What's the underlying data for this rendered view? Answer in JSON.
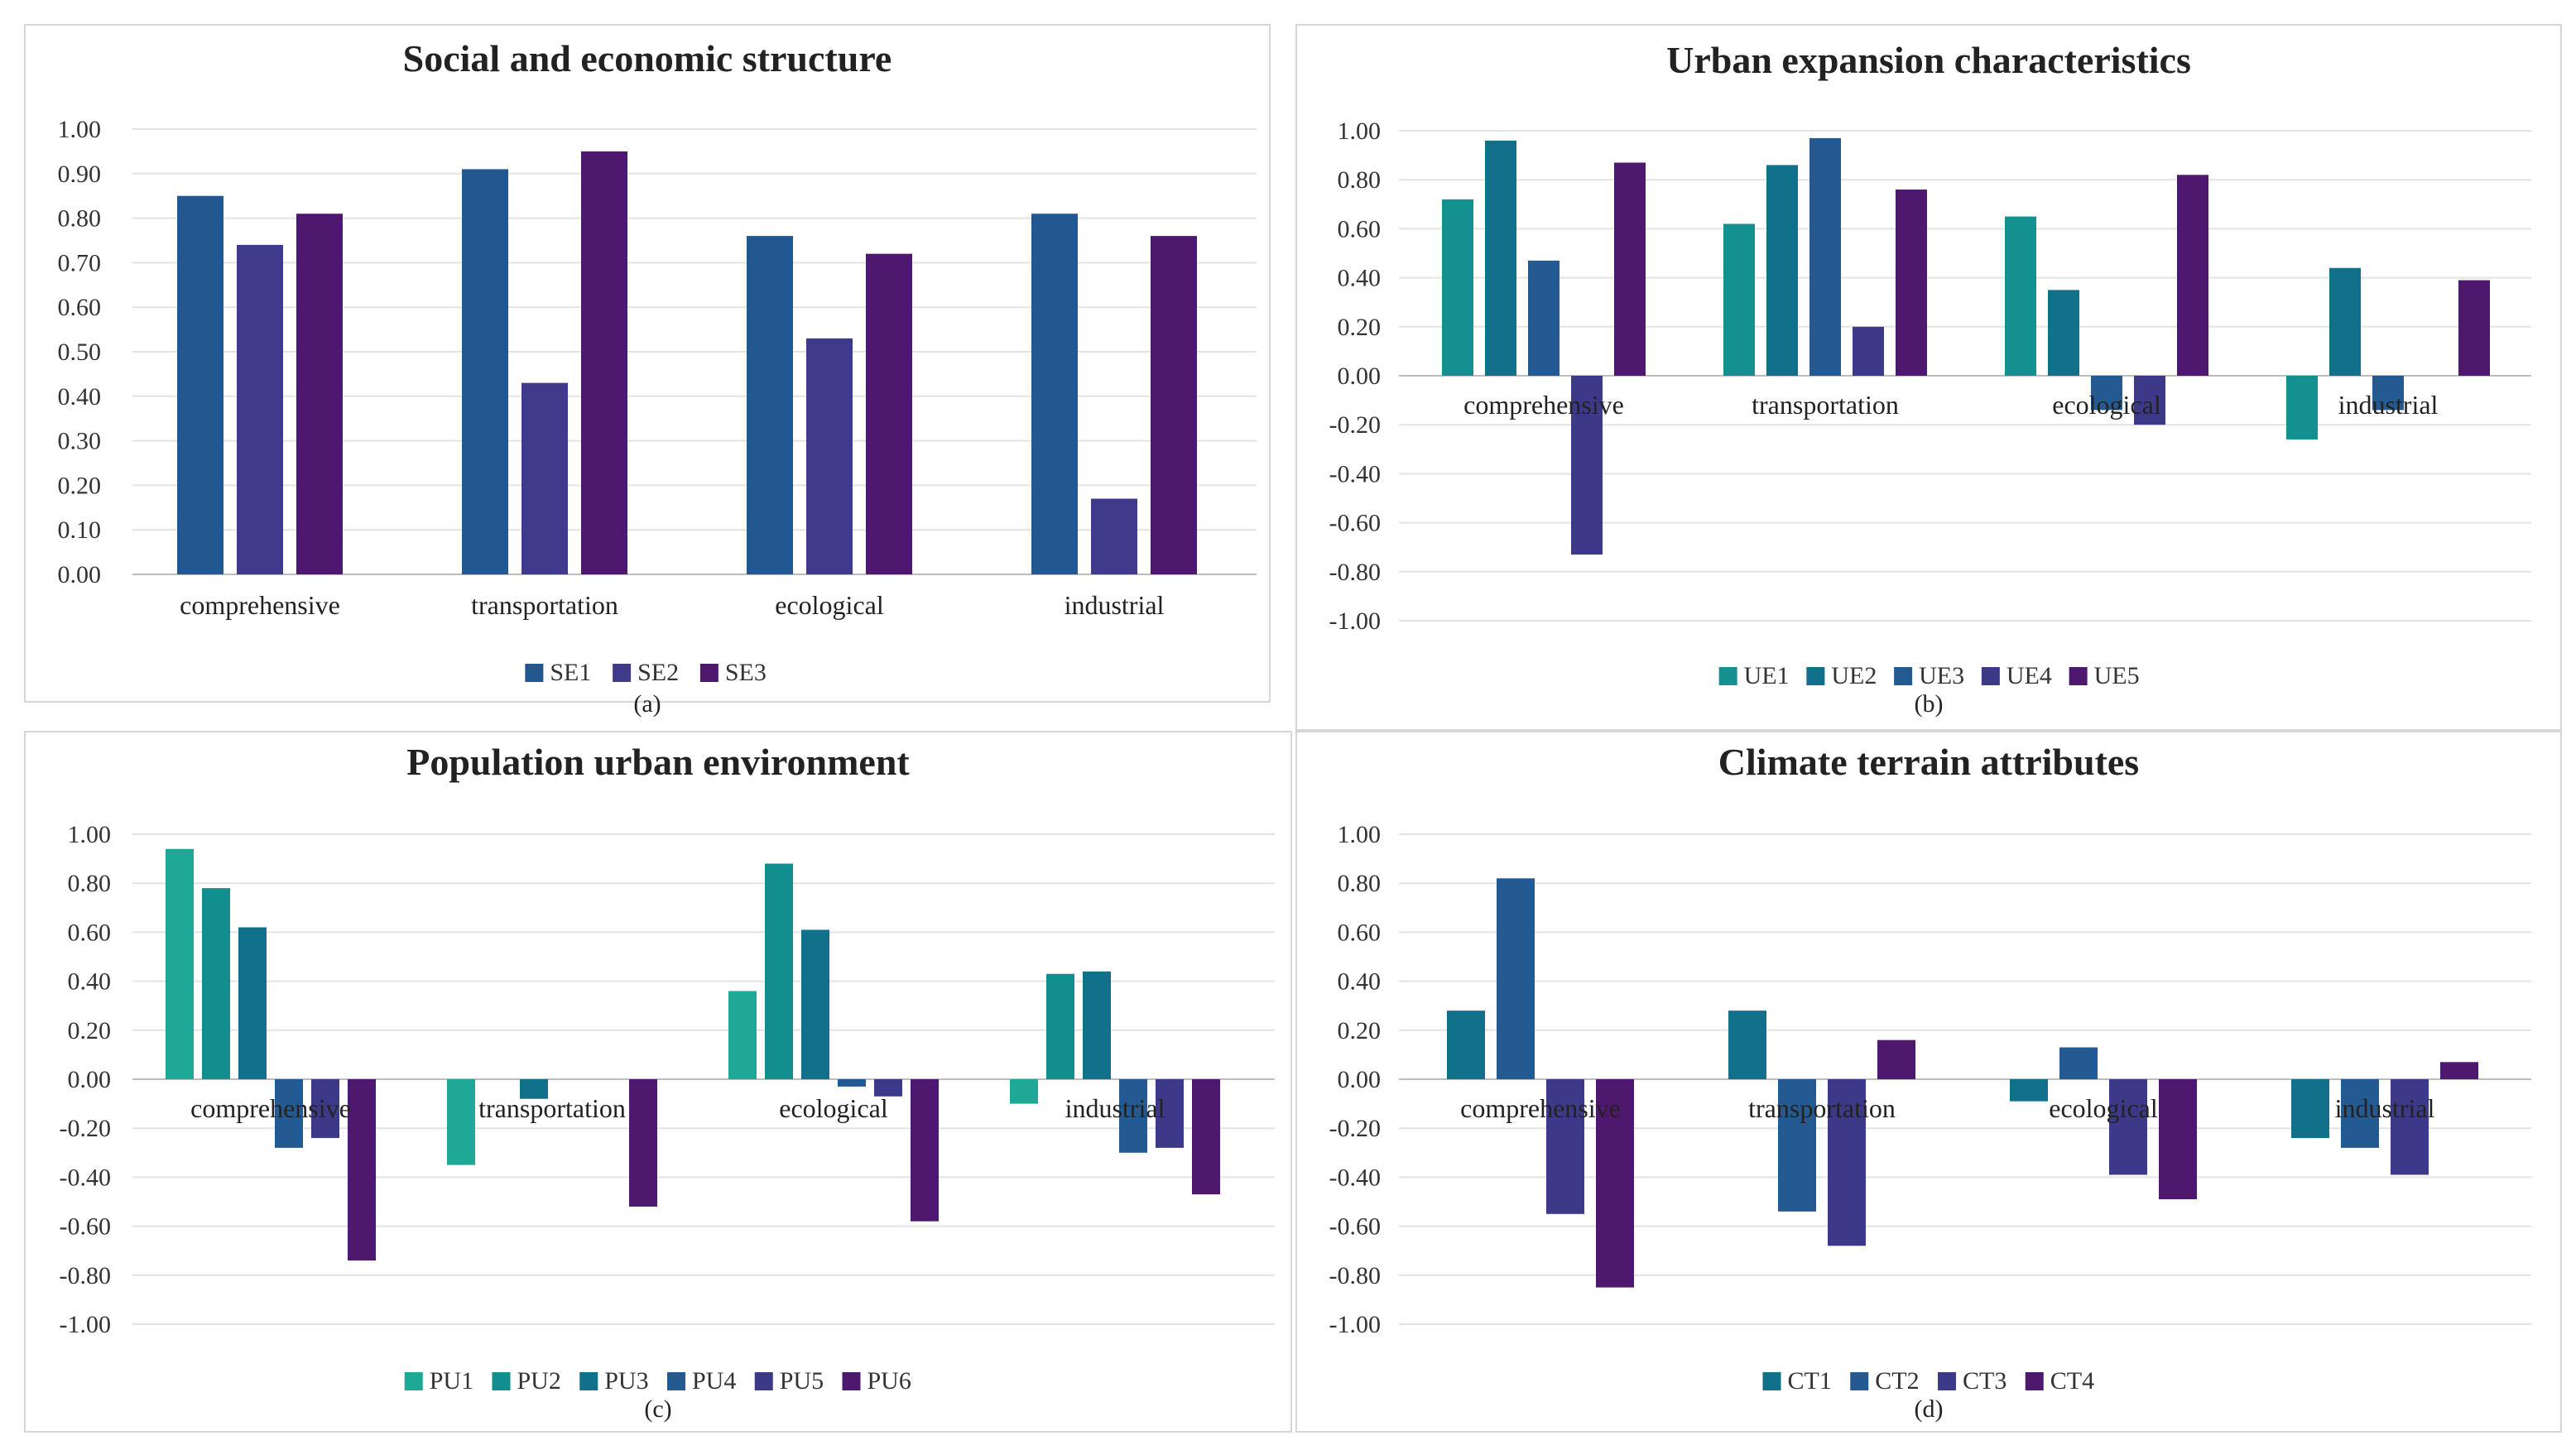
{
  "figure": {
    "panels": [
      {
        "id": "a",
        "label": "(a)"
      },
      {
        "id": "b",
        "label": "(b)"
      },
      {
        "id": "c",
        "label": "(c)"
      },
      {
        "id": "d",
        "label": "(d)"
      }
    ]
  },
  "chart_data": [
    {
      "type": "bar",
      "title": "Social and economic structure",
      "panel_label": "(a)",
      "categories": [
        "comprehensive",
        "transportation",
        "ecological",
        "industrial"
      ],
      "ylim": [
        0,
        1
      ],
      "yticks": [
        0,
        0.1,
        0.2,
        0.3,
        0.4,
        0.5,
        0.6,
        0.7,
        0.8,
        0.9,
        1.0
      ],
      "grid": true,
      "legend": "bottom",
      "xlabel": "",
      "ylabel": "",
      "series": [
        {
          "name": "SE1",
          "color": "#235790",
          "values": [
            0.85,
            0.91,
            0.76,
            0.81
          ]
        },
        {
          "name": "SE2",
          "color": "#3f3a8a",
          "values": [
            0.74,
            0.43,
            0.53,
            0.17
          ]
        },
        {
          "name": "SE3",
          "color": "#4f186f",
          "values": [
            0.81,
            0.95,
            0.72,
            0.76
          ]
        }
      ]
    },
    {
      "type": "bar",
      "title": "Urban expansion characteristics",
      "panel_label": "(b)",
      "categories": [
        "comprehensive",
        "transportation",
        "ecological",
        "industrial"
      ],
      "ylim": [
        -1,
        1
      ],
      "yticks": [
        -1,
        -0.8,
        -0.6,
        -0.4,
        -0.2,
        0,
        0.2,
        0.4,
        0.6,
        0.8,
        1.0
      ],
      "grid": true,
      "legend": "bottom",
      "xlabel": "",
      "ylabel": "",
      "series": [
        {
          "name": "UE1",
          "color": "#13908f",
          "values": [
            0.72,
            0.62,
            0.65,
            -0.26
          ]
        },
        {
          "name": "UE2",
          "color": "#11708a",
          "values": [
            0.96,
            0.86,
            0.35,
            0.44
          ]
        },
        {
          "name": "UE3",
          "color": "#245a92",
          "values": [
            0.47,
            0.97,
            -0.14,
            -0.14
          ]
        },
        {
          "name": "UE4",
          "color": "#3c3a88",
          "values": [
            -0.73,
            0.2,
            -0.2,
            0.0
          ]
        },
        {
          "name": "UE5",
          "color": "#4f186f",
          "values": [
            0.87,
            0.76,
            0.82,
            0.39
          ]
        }
      ]
    },
    {
      "type": "bar",
      "title": "Population urban environment",
      "panel_label": "(c)",
      "categories": [
        "comprehensive",
        "transportation",
        "ecological",
        "industrial"
      ],
      "ylim": [
        -1,
        1
      ],
      "yticks": [
        -1,
        -0.8,
        -0.6,
        -0.4,
        -0.2,
        0,
        0.2,
        0.4,
        0.6,
        0.8,
        1.0
      ],
      "grid": true,
      "legend": "bottom",
      "xlabel": "",
      "ylabel": "",
      "series": [
        {
          "name": "PU1",
          "color": "#1ea896",
          "values": [
            0.94,
            -0.35,
            0.36,
            -0.1
          ]
        },
        {
          "name": "PU2",
          "color": "#138e8e",
          "values": [
            0.78,
            0.0,
            0.88,
            0.43
          ]
        },
        {
          "name": "PU3",
          "color": "#11708a",
          "values": [
            0.62,
            -0.08,
            0.61,
            0.44
          ]
        },
        {
          "name": "PU4",
          "color": "#245a92",
          "values": [
            -0.28,
            0.0,
            -0.03,
            -0.3
          ]
        },
        {
          "name": "PU5",
          "color": "#3c3a88",
          "values": [
            -0.24,
            0.0,
            -0.07,
            -0.28
          ]
        },
        {
          "name": "PU6",
          "color": "#4f186f",
          "values": [
            -0.74,
            -0.52,
            -0.58,
            -0.47
          ]
        }
      ]
    },
    {
      "type": "bar",
      "title": "Climate terrain attributes",
      "panel_label": "(d)",
      "categories": [
        "comprehensive",
        "transportation",
        "ecological",
        "industrial"
      ],
      "ylim": [
        -1,
        1
      ],
      "yticks": [
        -1,
        -0.8,
        -0.6,
        -0.4,
        -0.2,
        0,
        0.2,
        0.4,
        0.6,
        0.8,
        1.0
      ],
      "grid": true,
      "legend": "bottom",
      "xlabel": "",
      "ylabel": "",
      "series": [
        {
          "name": "CT1",
          "color": "#11708a",
          "values": [
            0.28,
            0.28,
            -0.09,
            -0.24
          ]
        },
        {
          "name": "CT2",
          "color": "#245a92",
          "values": [
            0.82,
            -0.54,
            0.13,
            -0.28
          ]
        },
        {
          "name": "CT3",
          "color": "#3c3a88",
          "values": [
            -0.55,
            -0.68,
            -0.39,
            -0.39
          ]
        },
        {
          "name": "CT4",
          "color": "#4f186f",
          "values": [
            -0.85,
            0.16,
            -0.49,
            0.07
          ]
        }
      ]
    }
  ]
}
